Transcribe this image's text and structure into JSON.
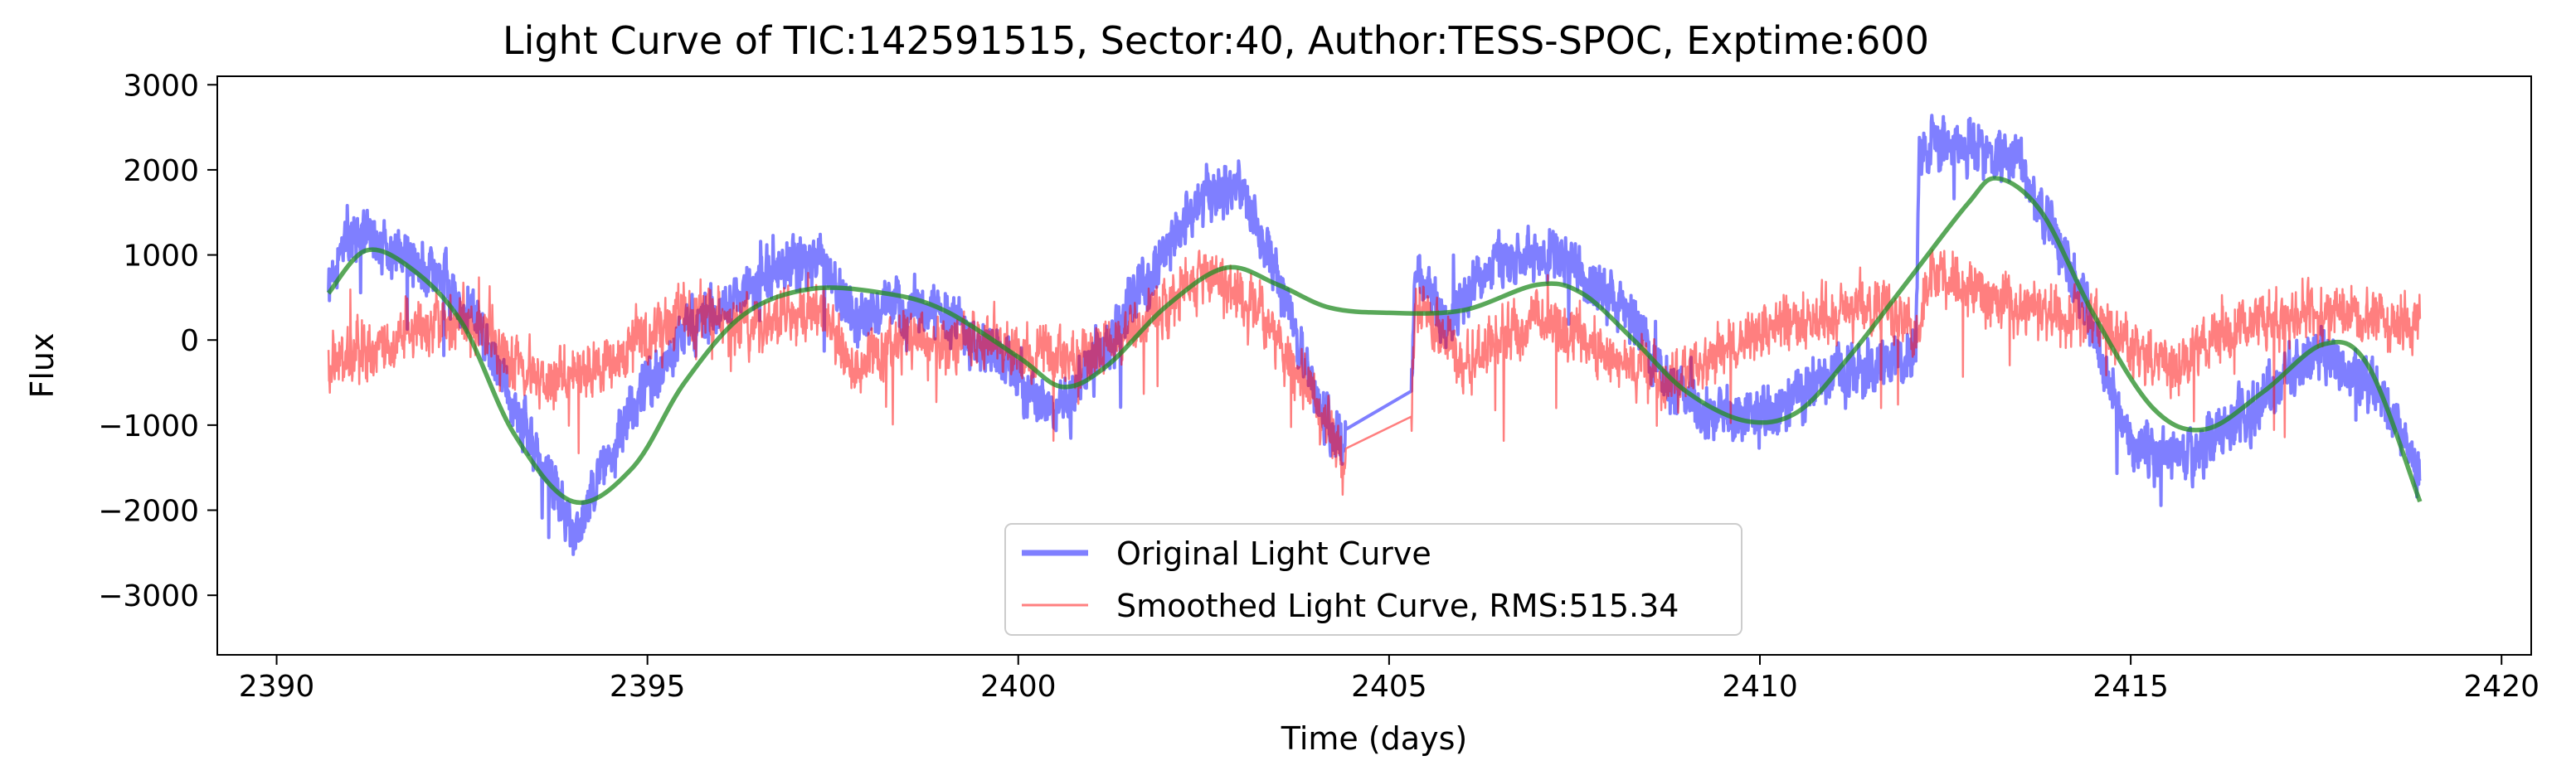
{
  "chart_data": {
    "type": "line",
    "title": "Light Curve of TIC:142591515, Sector:40, Author:TESS-SPOC, Exptime:600",
    "xlabel": "Time (days)",
    "ylabel": "Flux",
    "xlim": [
      2389.2,
      2420.4
    ],
    "ylim": [
      -3700,
      3100
    ],
    "xticks": [
      2390,
      2395,
      2400,
      2405,
      2410,
      2415,
      2420
    ],
    "yticks": [
      -3000,
      -2000,
      -1000,
      0,
      1000,
      2000,
      3000
    ],
    "grid": false,
    "legend_position": "bottom-center",
    "legend": [
      "Original Light Curve",
      "Smoothed Light Curve, RMS:515.34"
    ],
    "series": [
      {
        "name": "Original Light Curve",
        "color": "#0000ff",
        "anchors": [
          [
            2390.7,
            600
          ],
          [
            2391.0,
            1300
          ],
          [
            2391.5,
            1100
          ],
          [
            2392.0,
            900
          ],
          [
            2392.7,
            300
          ],
          [
            2393.2,
            -800
          ],
          [
            2393.7,
            -1600
          ],
          [
            2394.0,
            -2300
          ],
          [
            2394.3,
            -1700
          ],
          [
            2394.8,
            -800
          ],
          [
            2395.5,
            100
          ],
          [
            2396.2,
            500
          ],
          [
            2396.8,
            800
          ],
          [
            2397.3,
            1000
          ],
          [
            2397.8,
            200
          ],
          [
            2398.3,
            400
          ],
          [
            2399.0,
            300
          ],
          [
            2399.7,
            -200
          ],
          [
            2400.5,
            -900
          ],
          [
            2401.0,
            -300
          ],
          [
            2401.7,
            700
          ],
          [
            2402.5,
            1700
          ],
          [
            2403.0,
            1800
          ],
          [
            2403.5,
            700
          ],
          [
            2404.0,
            -600
          ],
          [
            2404.4,
            -1300
          ],
          [
            2404.42,
            -1000
          ],
          [
            2405.3,
            -600
          ],
          [
            2405.35,
            800
          ],
          [
            2405.8,
            200
          ],
          [
            2406.5,
            1000
          ],
          [
            2407.5,
            900
          ],
          [
            2408.3,
            200
          ],
          [
            2408.8,
            -600
          ],
          [
            2409.5,
            -900
          ],
          [
            2410.3,
            -800
          ],
          [
            2411.0,
            -400
          ],
          [
            2411.8,
            -300
          ],
          [
            2412.1,
            -100
          ],
          [
            2412.15,
            2200
          ],
          [
            2412.8,
            2300
          ],
          [
            2413.5,
            2100
          ],
          [
            2414.2,
            800
          ],
          [
            2415.0,
            -1200
          ],
          [
            2415.7,
            -1400
          ],
          [
            2416.5,
            -900
          ],
          [
            2417.5,
            -100
          ],
          [
            2418.3,
            -600
          ],
          [
            2418.9,
            -1600
          ]
        ],
        "noise": 330
      },
      {
        "name": "Smoothed Light Curve, RMS:515.34",
        "color": "#ff0000",
        "anchors": [
          [
            2390.7,
            -300
          ],
          [
            2391.5,
            0
          ],
          [
            2392.5,
            300
          ],
          [
            2393.5,
            -500
          ],
          [
            2394.5,
            -300
          ],
          [
            2395.5,
            300
          ],
          [
            2396.5,
            200
          ],
          [
            2397.3,
            400
          ],
          [
            2397.8,
            -300
          ],
          [
            2398.5,
            0
          ],
          [
            2399.5,
            0
          ],
          [
            2400.5,
            -200
          ],
          [
            2401.5,
            0
          ],
          [
            2402.5,
            800
          ],
          [
            2403.3,
            300
          ],
          [
            2404.0,
            -700
          ],
          [
            2404.4,
            -1400
          ],
          [
            2404.42,
            -1300
          ],
          [
            2405.3,
            -900
          ],
          [
            2405.35,
            500
          ],
          [
            2406.0,
            -300
          ],
          [
            2407.0,
            300
          ],
          [
            2408.0,
            -200
          ],
          [
            2408.8,
            -500
          ],
          [
            2409.8,
            0
          ],
          [
            2410.8,
            300
          ],
          [
            2411.7,
            400
          ],
          [
            2412.1,
            0
          ],
          [
            2412.3,
            800
          ],
          [
            2413.5,
            400
          ],
          [
            2414.5,
            200
          ],
          [
            2415.5,
            -300
          ],
          [
            2416.5,
            200
          ],
          [
            2417.5,
            300
          ],
          [
            2418.9,
            200
          ]
        ],
        "noise": 360
      },
      {
        "name": "",
        "color": "#228b22",
        "anchors": [
          [
            2390.7,
            550
          ],
          [
            2391.2,
            1050
          ],
          [
            2391.8,
            850
          ],
          [
            2392.5,
            200
          ],
          [
            2393.2,
            -1100
          ],
          [
            2394.0,
            -1900
          ],
          [
            2394.8,
            -1500
          ],
          [
            2395.5,
            -500
          ],
          [
            2396.3,
            300
          ],
          [
            2397.2,
            600
          ],
          [
            2398.2,
            550
          ],
          [
            2399.0,
            350
          ],
          [
            2400.0,
            -200
          ],
          [
            2400.6,
            -550
          ],
          [
            2401.2,
            -300
          ],
          [
            2402.0,
            400
          ],
          [
            2402.8,
            850
          ],
          [
            2403.5,
            650
          ],
          [
            2404.2,
            380
          ],
          [
            2405.0,
            320
          ],
          [
            2406.0,
            350
          ],
          [
            2407.0,
            650
          ],
          [
            2407.6,
            550
          ],
          [
            2408.3,
            0
          ],
          [
            2409.0,
            -600
          ],
          [
            2409.8,
            -950
          ],
          [
            2410.5,
            -850
          ],
          [
            2411.2,
            -200
          ],
          [
            2412.0,
            700
          ],
          [
            2412.8,
            1600
          ],
          [
            2413.2,
            1900
          ],
          [
            2413.8,
            1500
          ],
          [
            2414.5,
            300
          ],
          [
            2415.3,
            -800
          ],
          [
            2416.0,
            -1050
          ],
          [
            2416.8,
            -600
          ],
          [
            2417.6,
            -50
          ],
          [
            2418.2,
            -300
          ],
          [
            2418.9,
            -1900
          ]
        ],
        "noise": 0
      }
    ]
  }
}
